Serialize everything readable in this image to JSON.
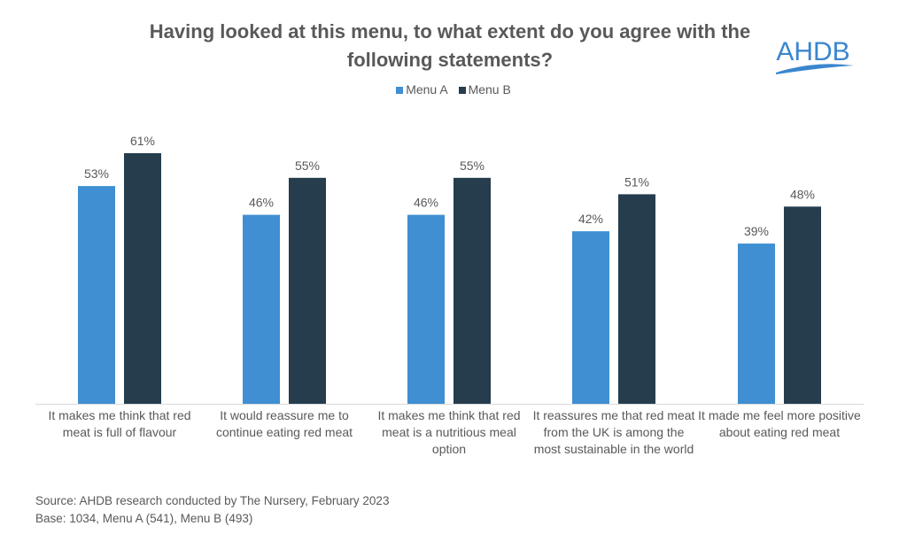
{
  "chart_data": {
    "type": "bar",
    "title": "Having looked at this menu, to what extent do you agree with the following statements?",
    "categories": [
      "It makes me think that red meat is full of flavour",
      "It would reassure me to continue eating red meat",
      "It makes me think that red meat is a nutritious meal option",
      "It reassures me that red meat from the UK is among the most sustainable in the world",
      "It made me feel more positive about eating red meat"
    ],
    "series": [
      {
        "name": "Menu A",
        "color": "#3f8fd2",
        "values": [
          53,
          46,
          46,
          42,
          39
        ]
      },
      {
        "name": "Menu B",
        "color": "#253d4d",
        "values": [
          61,
          55,
          55,
          51,
          48
        ]
      }
    ],
    "value_suffix": "%",
    "ylim": [
      0,
      61
    ],
    "legend_position": "top",
    "grid": false
  },
  "logo_text": "AHDB",
  "footer": {
    "source": "Source: AHDB research conducted by The Nursery, February 2023",
    "base": "Base: 1034, Menu A (541), Menu B (493)"
  }
}
